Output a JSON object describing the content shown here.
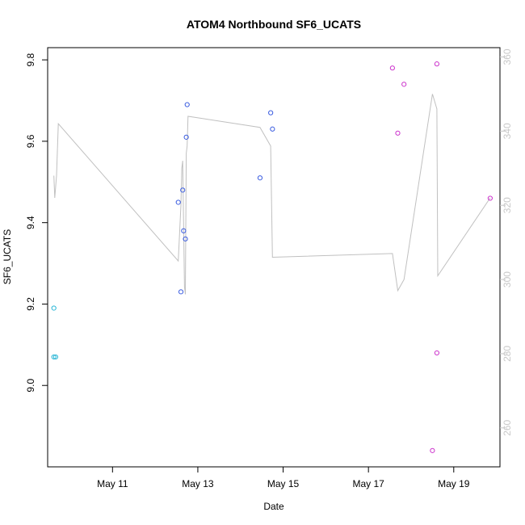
{
  "chart_data": {
    "type": "scatter",
    "title": "ATOM4 Northbound SF6_UCATS",
    "xlabel": "Date",
    "ylabel": "SF6_UCATS",
    "x_tick_labels": [
      {
        "date": "2016-05-11",
        "label": "May 11"
      },
      {
        "date": "2016-05-13",
        "label": "May 13"
      },
      {
        "date": "2016-05-15",
        "label": "May 15"
      },
      {
        "date": "2016-05-17",
        "label": "May 17"
      },
      {
        "date": "2016-05-19",
        "label": "May 19"
      }
    ],
    "xlim": [
      "2016-05-09T11:30",
      "2016-05-20T02:00"
    ],
    "ylim": [
      8.8,
      9.83
    ],
    "y_ticks": [
      9.0,
      9.2,
      9.4,
      9.6,
      9.8
    ],
    "y2lim": [
      249.5,
      362.5
    ],
    "y2_ticks": [
      260,
      280,
      300,
      320,
      340,
      360
    ],
    "grid": false,
    "line_color": "#c0c0c0",
    "points": [
      {
        "x": "2016-05-09T15:00",
        "y": 9.19,
        "color": "#29b6d6"
      },
      {
        "x": "2016-05-09T15:00",
        "y": 9.07,
        "color": "#29b6d6"
      },
      {
        "x": "2016-05-09T16:00",
        "y": 9.07,
        "color": "#29b6d6"
      },
      {
        "x": "2016-05-12T13:00",
        "y": 9.45,
        "color": "#3a5ce0"
      },
      {
        "x": "2016-05-12T14:30",
        "y": 9.23,
        "color": "#3a5ce0"
      },
      {
        "x": "2016-05-12T15:30",
        "y": 9.48,
        "color": "#3a5ce0"
      },
      {
        "x": "2016-05-12T16:00",
        "y": 9.38,
        "color": "#3a5ce0"
      },
      {
        "x": "2016-05-12T17:00",
        "y": 9.36,
        "color": "#3a5ce0"
      },
      {
        "x": "2016-05-12T17:30",
        "y": 9.61,
        "color": "#3a5ce0"
      },
      {
        "x": "2016-05-12T18:00",
        "y": 9.69,
        "color": "#3a5ce0"
      },
      {
        "x": "2016-05-14T11:00",
        "y": 9.51,
        "color": "#3a5ce0"
      },
      {
        "x": "2016-05-14T17:00",
        "y": 9.67,
        "color": "#3a5ce0"
      },
      {
        "x": "2016-05-14T18:00",
        "y": 9.63,
        "color": "#3a5ce0"
      },
      {
        "x": "2016-05-17T13:30",
        "y": 9.78,
        "color": "#cc33cc"
      },
      {
        "x": "2016-05-17T16:30",
        "y": 9.62,
        "color": "#cc33cc"
      },
      {
        "x": "2016-05-17T20:00",
        "y": 9.74,
        "color": "#cc33cc"
      },
      {
        "x": "2016-05-18T12:00",
        "y": 8.84,
        "color": "#cc33cc"
      },
      {
        "x": "2016-05-18T14:30",
        "y": 9.08,
        "color": "#cc33cc"
      },
      {
        "x": "2016-05-18T14:30",
        "y": 9.79,
        "color": "#cc33cc"
      },
      {
        "x": "2016-05-19T20:30",
        "y": 9.46,
        "color": "#cc33cc"
      }
    ],
    "line_series": [
      {
        "x": "2016-05-09T15:00",
        "y2": 328
      },
      {
        "x": "2016-05-09T15:30",
        "y2": 322
      },
      {
        "x": "2016-05-09T16:30",
        "y2": 328
      },
      {
        "x": "2016-05-09T17:30",
        "y2": 342
      },
      {
        "x": "2016-05-12T13:00",
        "y2": 305
      },
      {
        "x": "2016-05-12T14:30",
        "y2": 320
      },
      {
        "x": "2016-05-12T15:00",
        "y2": 330
      },
      {
        "x": "2016-05-12T15:30",
        "y2": 332
      },
      {
        "x": "2016-05-12T16:30",
        "y2": 298
      },
      {
        "x": "2016-05-12T17:00",
        "y2": 296
      },
      {
        "x": "2016-05-12T17:30",
        "y2": 334
      },
      {
        "x": "2016-05-12T18:00",
        "y2": 336
      },
      {
        "x": "2016-05-12T18:30",
        "y2": 344
      },
      {
        "x": "2016-05-14T11:00",
        "y2": 341
      },
      {
        "x": "2016-05-14T17:00",
        "y2": 336
      },
      {
        "x": "2016-05-14T18:00",
        "y2": 306
      },
      {
        "x": "2016-05-17T13:30",
        "y2": 307
      },
      {
        "x": "2016-05-17T16:30",
        "y2": 297
      },
      {
        "x": "2016-05-17T20:00",
        "y2": 300
      },
      {
        "x": "2016-05-18T12:00",
        "y2": 350
      },
      {
        "x": "2016-05-18T14:30",
        "y2": 346
      },
      {
        "x": "2016-05-18T15:00",
        "y2": 301
      },
      {
        "x": "2016-05-19T20:30",
        "y2": 322
      }
    ]
  }
}
